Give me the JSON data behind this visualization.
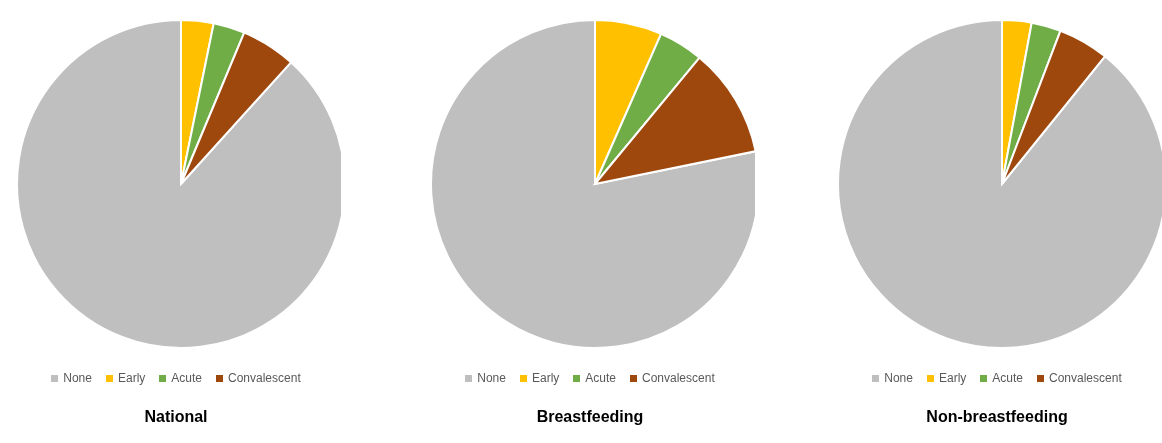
{
  "chart_data": [
    {
      "type": "pie",
      "title": "National",
      "categories": [
        "None",
        "Early",
        "Acute",
        "Convalescent"
      ],
      "values": [
        88.3,
        3.2,
        3.1,
        5.4
      ],
      "colors": [
        "#bfbfbf",
        "#ffc000",
        "#70ad47",
        "#9e480e"
      ],
      "legend": "bottom"
    },
    {
      "type": "pie",
      "title": "Breastfeeding",
      "categories": [
        "None",
        "Early",
        "Acute",
        "Convalescent"
      ],
      "values": [
        78.2,
        6.6,
        4.4,
        10.8
      ],
      "colors": [
        "#bfbfbf",
        "#ffc000",
        "#70ad47",
        "#9e480e"
      ],
      "legend": "bottom"
    },
    {
      "type": "pie",
      "title": "Non-breastfeeding",
      "categories": [
        "None",
        "Early",
        "Acute",
        "Convalescent"
      ],
      "values": [
        89.2,
        2.9,
        2.9,
        5.0
      ],
      "colors": [
        "#bfbfbf",
        "#ffc000",
        "#70ad47",
        "#9e480e"
      ],
      "legend": "bottom"
    }
  ]
}
